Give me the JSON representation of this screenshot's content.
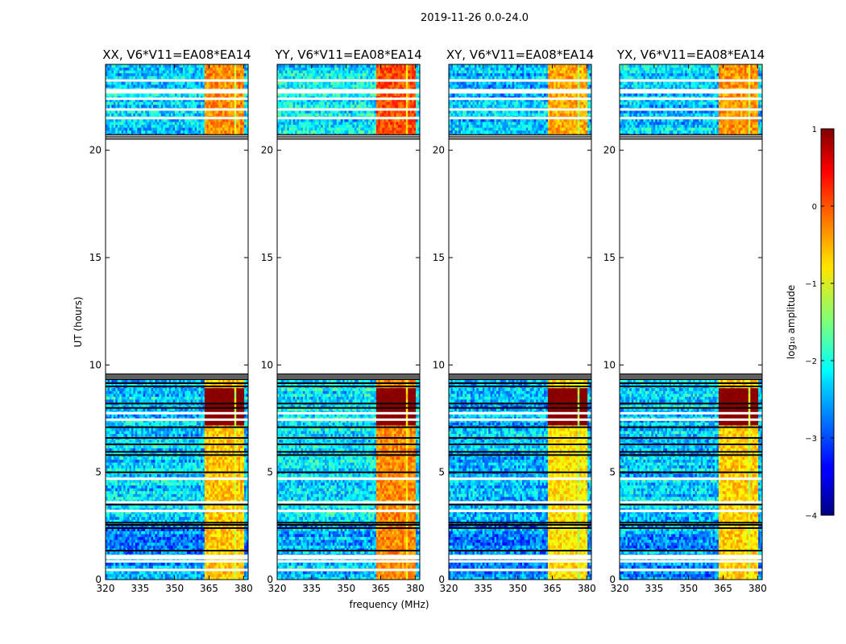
{
  "chart_data": {
    "type": "heatmap",
    "title": "2019-11-26 0.0-24.0",
    "xlabel": "frequency (MHz)",
    "ylabel": "UT (hours)",
    "xlim": [
      320,
      382
    ],
    "ylim": [
      0,
      24
    ],
    "xticks": [
      "320",
      "335",
      "350",
      "365",
      "380"
    ],
    "yticks": [
      "0",
      "5",
      "10",
      "15",
      "20"
    ],
    "panels": [
      {
        "title": "XX, V6*V11=EA08*EA14",
        "base_level": -2.35,
        "band_level": -0.6
      },
      {
        "title": "YY, V6*V11=EA08*EA14",
        "base_level": -2.2,
        "band_level": -0.3
      },
      {
        "title": "XY, V6*V11=EA08*EA14",
        "base_level": -2.45,
        "band_level": -0.75
      },
      {
        "title": "YX, V6*V11=EA08*EA14",
        "base_level": -2.35,
        "band_level": -0.65
      }
    ],
    "rfi_band_mhz": [
      363,
      380
    ],
    "rfi_channels_mhz": [
      [
        363.0,
        367.0
      ],
      [
        367.5,
        371.5
      ],
      [
        372.0,
        376.0
      ],
      [
        376.5,
        380.0
      ]
    ],
    "saturated_ut_range": [
      7.2,
      8.9
    ],
    "data_ut_ranges": [
      [
        0,
        9.3
      ],
      [
        20.7,
        24.0
      ]
    ],
    "flagged_ut_ranges": [
      [
        9.3,
        9.6
      ],
      [
        20.5,
        20.75
      ]
    ],
    "flagged_ut_lines": [
      1.35,
      2.4,
      2.55,
      2.65,
      3.5,
      5.0,
      5.8,
      5.95,
      6.3,
      6.6,
      7.1,
      8.0,
      8.2,
      9.0,
      9.15
    ],
    "blank_ut_lines": [
      0.45,
      0.85,
      1.0,
      1.1,
      3.2,
      3.6,
      4.7,
      7.45,
      7.75,
      21.5,
      21.9,
      22.4,
      22.7,
      22.8,
      23.25
    ],
    "colorbar": {
      "label": "log₁₀ amplitude",
      "range": [
        -4,
        1
      ],
      "ticks": [
        "−4",
        "−3",
        "−2",
        "−1",
        "0",
        "1"
      ],
      "colormap": "jet"
    }
  }
}
